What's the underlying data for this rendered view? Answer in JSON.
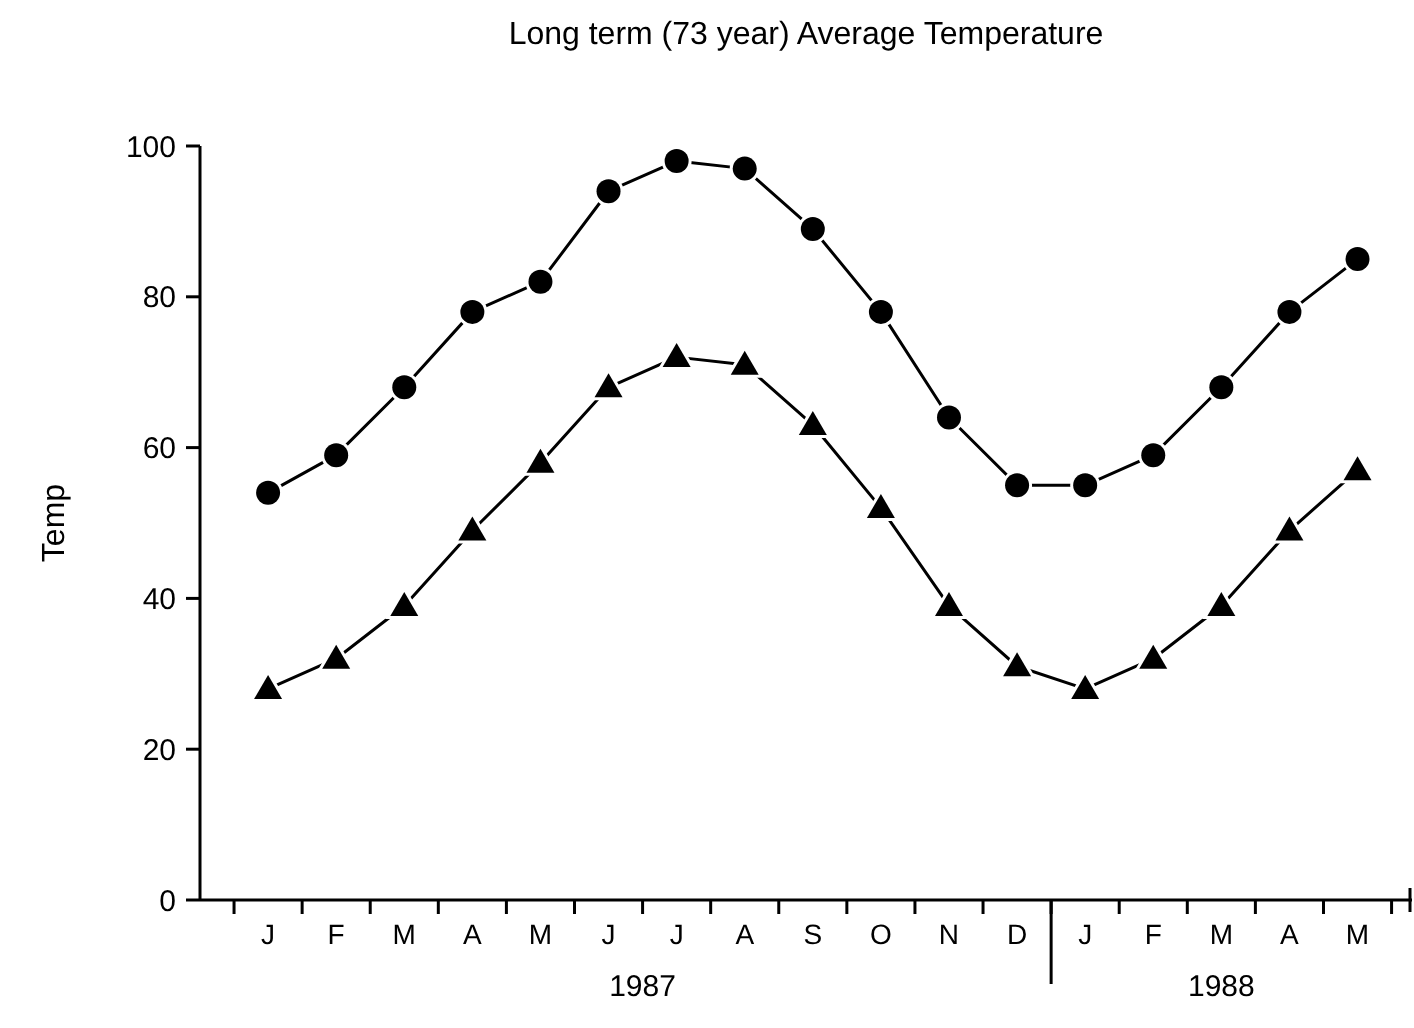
{
  "chart_data": {
    "type": "line",
    "title": "Long term (73 year) Average Temperature",
    "ylabel": "Temp",
    "categories": [
      "J",
      "F",
      "M",
      "A",
      "M",
      "J",
      "J",
      "A",
      "S",
      "O",
      "N",
      "D",
      "J",
      "F",
      "M",
      "A",
      "M"
    ],
    "series": [
      {
        "color": "#000000",
        "marker": "circle",
        "values": [
          54,
          59,
          68,
          78,
          82,
          94,
          98,
          97,
          89,
          78,
          64,
          55,
          55,
          59,
          68,
          78,
          85
        ]
      },
      {
        "color": "#000000",
        "marker": "triangle",
        "values": [
          28,
          32,
          39,
          49,
          58,
          68,
          72,
          71,
          63,
          52,
          39,
          31,
          28,
          32,
          39,
          49,
          57
        ]
      }
    ],
    "ylim": [
      0,
      100
    ],
    "yticks": [
      0,
      20,
      40,
      60,
      80,
      100
    ],
    "grid": false,
    "line_style": "solid",
    "annotations": [
      "1987",
      "1988"
    ]
  }
}
